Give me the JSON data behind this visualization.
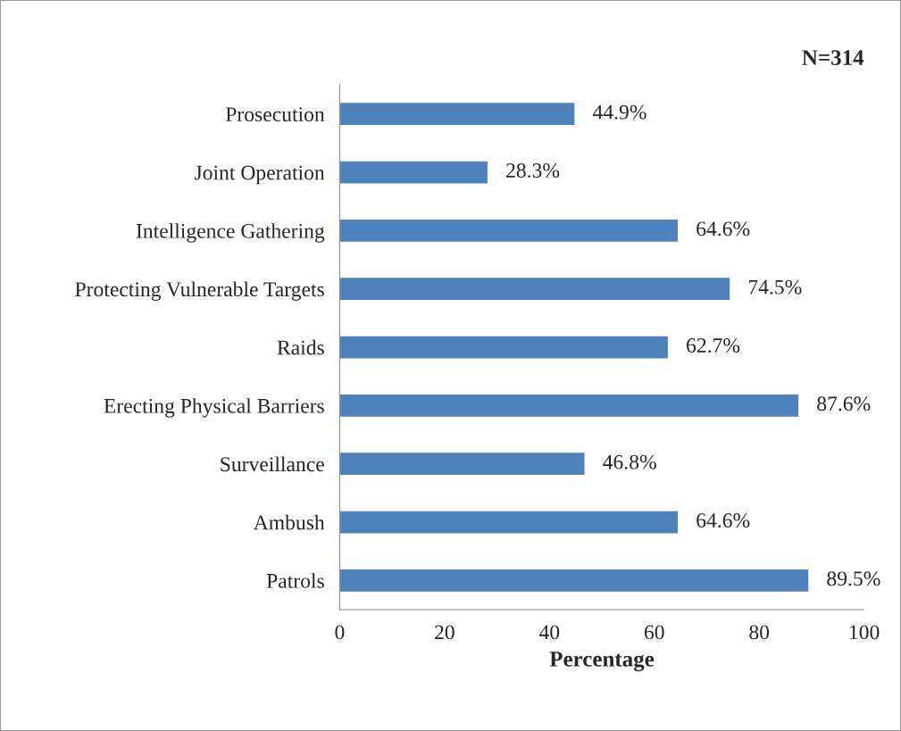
{
  "chart_data": {
    "type": "bar",
    "orientation": "horizontal",
    "title": "N=314",
    "xlabel": "Percentage",
    "categories": [
      "Prosecution",
      "Joint Operation",
      "Intelligence Gathering",
      "Protecting Vulnerable Targets",
      "Raids",
      "Erecting Physical Barriers",
      "Surveillance",
      "Ambush",
      "Patrols"
    ],
    "values": [
      44.9,
      28.3,
      64.6,
      74.5,
      62.7,
      87.6,
      46.8,
      64.6,
      89.5
    ],
    "value_labels": [
      "44.9%",
      "28.3%",
      "64.6%",
      "74.5%",
      "62.7%",
      "87.6%",
      "46.8%",
      "64.6%",
      "89.5%"
    ],
    "color": "#4f81bd",
    "xlim": [
      0,
      100
    ],
    "xticks": [
      0,
      20,
      40,
      60,
      80,
      100
    ],
    "grid": false
  }
}
